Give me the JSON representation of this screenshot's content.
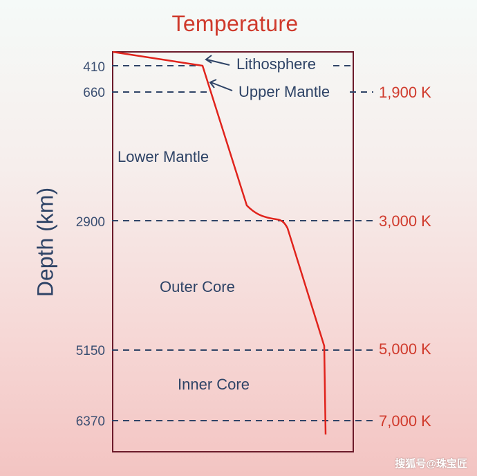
{
  "title": "Temperature",
  "y_axis_label": "Depth (km)",
  "depth_ticks": [
    "410",
    "660",
    "2900",
    "5150",
    "6370"
  ],
  "temperature_ticks": [
    "1,900 K",
    "3,000 K",
    "5,000 K",
    "7,000 K"
  ],
  "layers": {
    "lithosphere": "Lithosphere",
    "upper_mantle": "Upper Mantle",
    "lower_mantle": "Lower Mantle",
    "outer_core": "Outer Core",
    "inner_core": "Inner Core"
  },
  "watermark": "搜狐号@珠宝匠",
  "colors": {
    "title": "#cf3a2c",
    "curve": "#e0231c",
    "frame": "#6b1a2a",
    "dashed_lines": "#2e4366",
    "temperature_labels": "#d03a2c"
  },
  "icons": [
    "arrow-left-icon"
  ]
}
